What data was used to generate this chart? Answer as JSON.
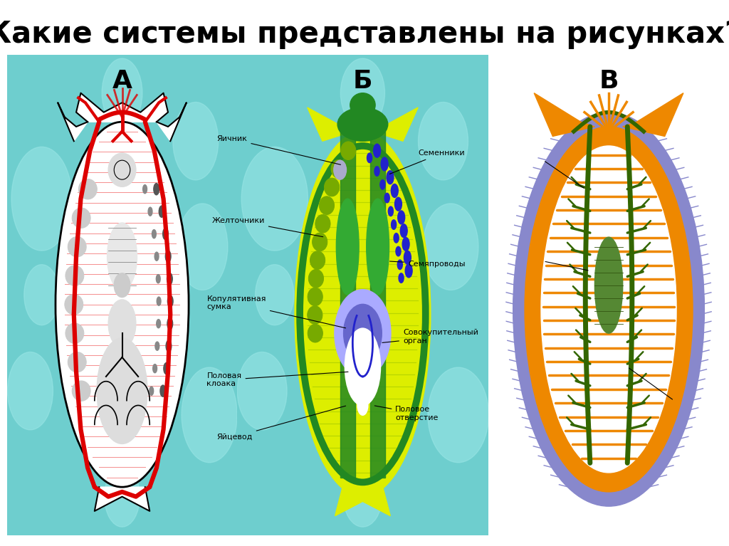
{
  "title": "Какие системы представлены на рисунках?",
  "title_fontsize": 30,
  "title_fontweight": "bold",
  "title_color": "#000000",
  "background_color": "#ffffff",
  "labels": [
    "А",
    "Б",
    "В"
  ],
  "label_fontsize": 26,
  "label_fontweight": "bold",
  "teal_bg": "#6ecece",
  "worm_A_bg": "#ffffff",
  "worm_B_yellow": "#ddee00",
  "worm_B_green": "#228822",
  "worm_B_blue": "#2222cc",
  "worm_C_orange": "#ee8800",
  "worm_C_purple": "#8888cc",
  "worm_C_green": "#336600",
  "worm_C_white": "#ffffff",
  "red_vessel": "#dd0000"
}
